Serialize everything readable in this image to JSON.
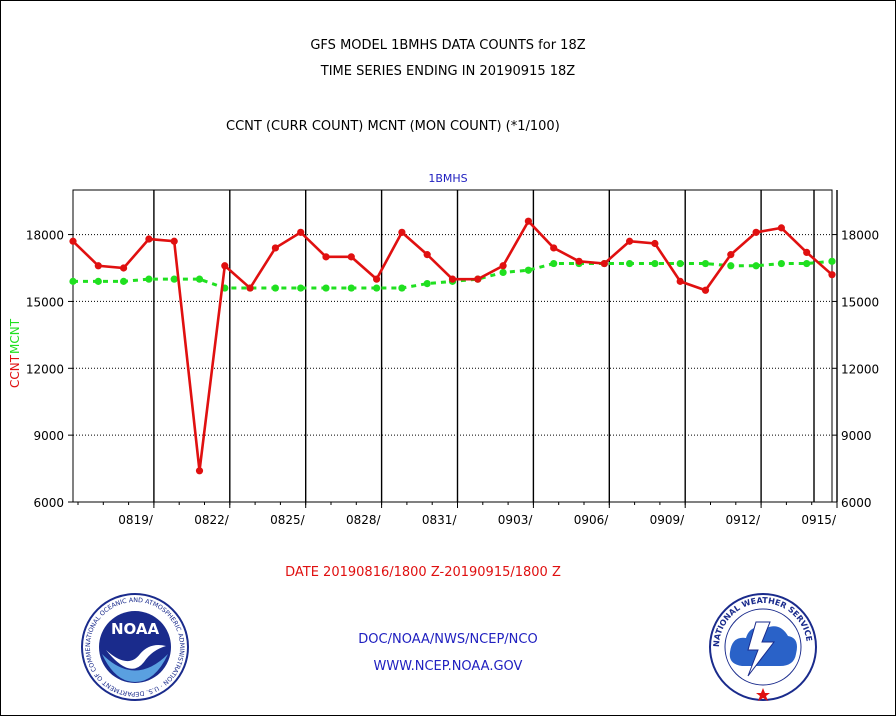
{
  "header": {
    "title_line1": "GFS MODEL 1BMHS DATA COUNTS for 18Z",
    "title_line2": "TIME SERIES ENDING IN 20190915 18Z",
    "subtitle": "CCNT (CURR COUNT) MCNT (MON COUNT) (*1/100)"
  },
  "footer": {
    "date_range": "DATE 20190816/1800 Z-20190915/1800 Z",
    "org": "DOC/NOAA/NWS/NCEP/NCO",
    "url": "WWW.NCEP.NOAA.GOV"
  },
  "logos": {
    "left": {
      "name": "noaa-logo",
      "text": "NOAA",
      "ring_text": "NATIONAL OCEANIC AND ATMOSPHERIC ADMINISTRATION · U.S. DEPARTMENT OF COMMERCE"
    },
    "right": {
      "name": "nws-logo",
      "ring_text": "NATIONAL WEATHER SERVICE"
    }
  },
  "chart_data": {
    "type": "line",
    "title": "1BMHS",
    "ylabel_ccnt": "CCNT",
    "ylabel_mcnt": "MCNT",
    "ylim": [
      6000,
      20000
    ],
    "yticks": [
      6000,
      9000,
      12000,
      15000,
      18000
    ],
    "ytick_labels": [
      "6000",
      "9000",
      "12000",
      "15000",
      "18000"
    ],
    "xticks": [
      "0819/",
      "0822/",
      "0825/",
      "0828/",
      "0831/",
      "0903/",
      "0906/",
      "0909/",
      "0912/",
      "0915/"
    ],
    "x": [
      "0816",
      "0817",
      "0818",
      "0819",
      "0820",
      "0821",
      "0822",
      "0823",
      "0824",
      "0825",
      "0826",
      "0827",
      "0828",
      "0829",
      "0830",
      "0831",
      "0901",
      "0902",
      "0903",
      "0904",
      "0905",
      "0906",
      "0907",
      "0908",
      "0909",
      "0910",
      "0911",
      "0912",
      "0913",
      "0914",
      "0915"
    ],
    "grid": true,
    "colors": {
      "ccnt": "#e01010",
      "mcnt": "#20e020",
      "axis": "#000000"
    },
    "series": [
      {
        "name": "CCNT",
        "values": [
          17700,
          16600,
          16500,
          17800,
          17700,
          7400,
          16600,
          15600,
          17400,
          18100,
          17000,
          17000,
          16000,
          18100,
          17100,
          16000,
          16000,
          16600,
          18600,
          17400,
          16800,
          16700,
          17700,
          17600,
          15900,
          15500,
          17100,
          18100,
          18300,
          17200,
          16200
        ]
      },
      {
        "name": "MCNT",
        "values": [
          15900,
          15900,
          15900,
          16000,
          16000,
          16000,
          15600,
          15600,
          15600,
          15600,
          15600,
          15600,
          15600,
          15600,
          15800,
          15900,
          16000,
          16300,
          16400,
          16700,
          16700,
          16700,
          16700,
          16700,
          16700,
          16700,
          16600,
          16600,
          16700,
          16700,
          16800
        ]
      }
    ]
  }
}
